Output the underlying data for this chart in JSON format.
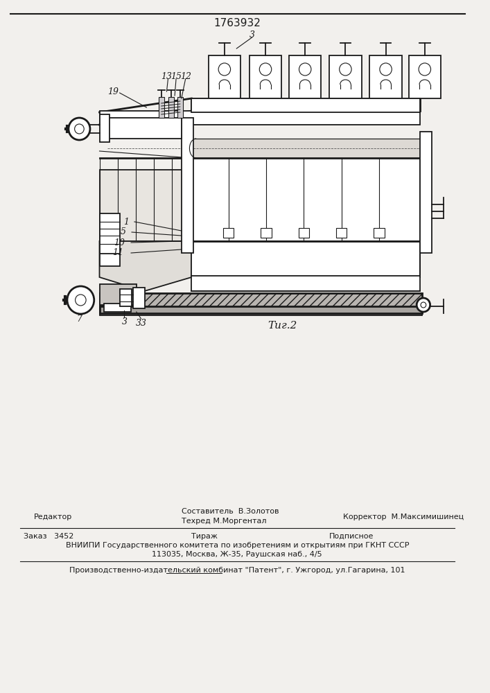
{
  "title": "1763932",
  "fig_label": "Τиг.2",
  "bg_color": "#f2f0ed",
  "line_color": "#1a1a1a",
  "footer_line1_left": "Редактор",
  "footer_line1_center": "Составитель  В.Золотов",
  "footer_line2_center": "Техред М.Моргентал",
  "footer_line2_right": "Корректор  М.Максимишинец",
  "footer_line3_left": "Заказ   3452",
  "footer_line3_center": "Тираж",
  "footer_line3_right": "Подписное",
  "footer_line4": "ВНИИПИ Государственного комитета по изобретениям и открытиям при ГКНТ СССР",
  "footer_line5": "113035, Москва, Ж-35, Раушская наб., 4/5",
  "footer_line6": "Производственно-издательский комбинат \"Патент\", г. Ужгород, ул.Гагарина, 101"
}
